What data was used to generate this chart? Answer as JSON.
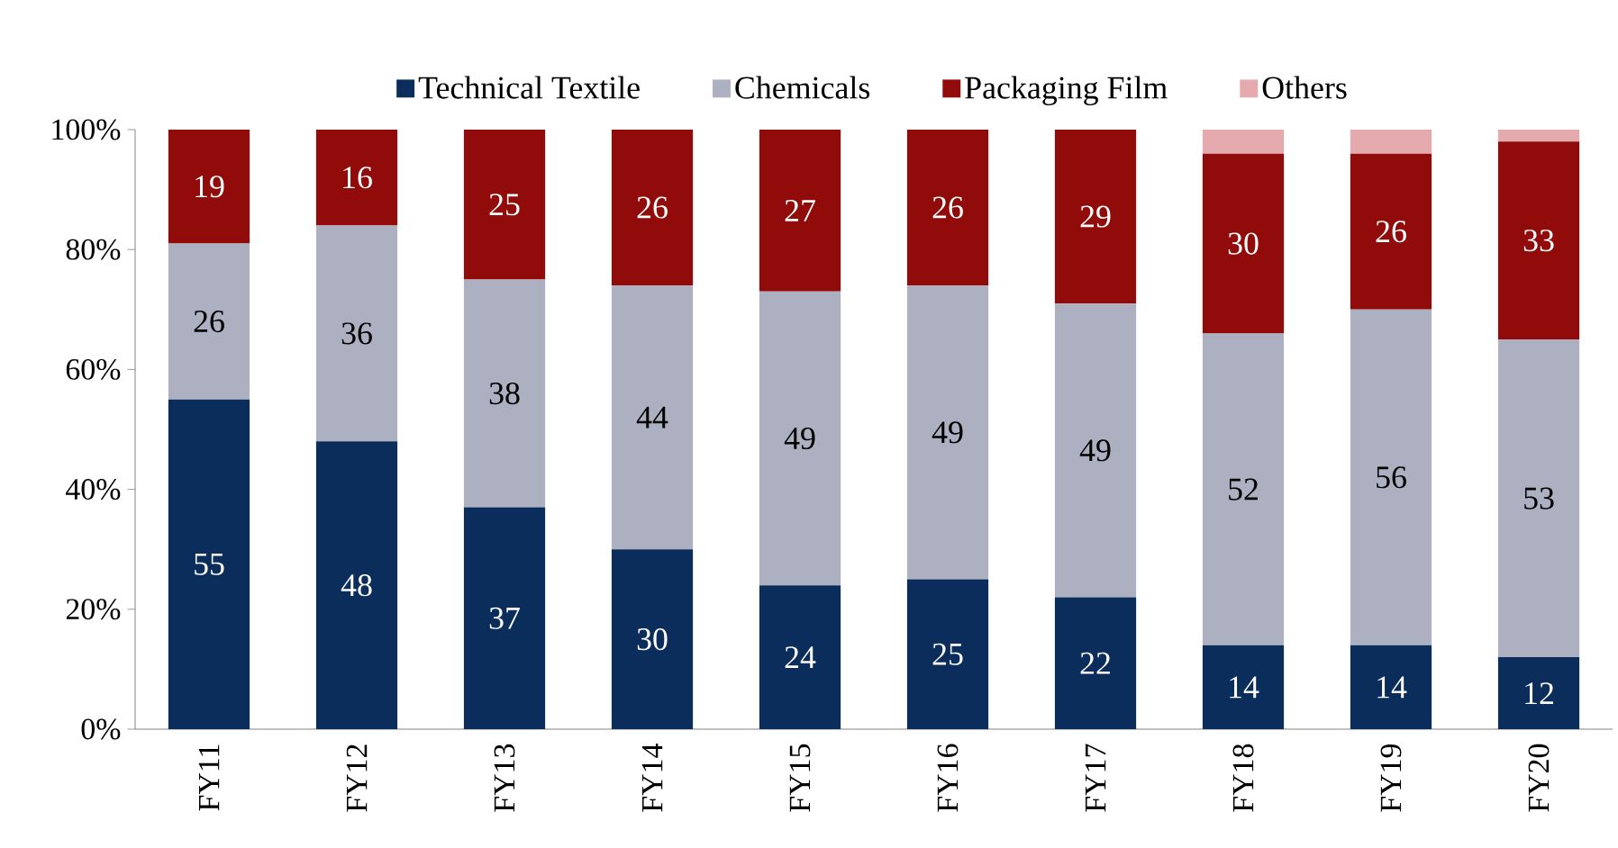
{
  "chart_data": {
    "type": "bar",
    "stacked": true,
    "legend": "top",
    "grid": false,
    "categories": [
      "FY11",
      "FY12",
      "FY13",
      "FY14",
      "FY15",
      "FY16",
      "FY17",
      "FY18",
      "FY19",
      "FY20"
    ],
    "ylim": [
      0,
      100
    ],
    "yticks": [
      {
        "value": 0,
        "label": "0%"
      },
      {
        "value": 20,
        "label": "20%"
      },
      {
        "value": 40,
        "label": "40%"
      },
      {
        "value": 60,
        "label": "60%"
      },
      {
        "value": 80,
        "label": "80%"
      },
      {
        "value": 100,
        "label": "100%"
      }
    ],
    "series": [
      {
        "name": "Technical Textile",
        "color": "#0b2d5b",
        "values": [
          55,
          48,
          37,
          30,
          24,
          25,
          22,
          14,
          14,
          12
        ],
        "value_labels": [
          "55",
          "48",
          "37",
          "30",
          "24",
          "25",
          "22",
          "14",
          "14",
          "12"
        ]
      },
      {
        "name": "Chemicals",
        "color": "#adb0c0",
        "values": [
          26,
          36,
          38,
          44,
          49,
          49,
          49,
          52,
          56,
          53
        ],
        "value_labels": [
          "26",
          "36",
          "38",
          "44",
          "49",
          "49",
          "49",
          "52",
          "56",
          "53"
        ]
      },
      {
        "name": "Packaging Film",
        "color": "#920b0b",
        "values": [
          19,
          16,
          25,
          26,
          27,
          26,
          29,
          30,
          26,
          33
        ],
        "value_labels": [
          "19",
          "16",
          "25",
          "26",
          "27",
          "26",
          "29",
          "30",
          "26",
          "33"
        ]
      },
      {
        "name": "Others",
        "color": "#e4aaae",
        "values": [
          0,
          0,
          0,
          0,
          0,
          0,
          0,
          4,
          4,
          2
        ]
      }
    ]
  }
}
